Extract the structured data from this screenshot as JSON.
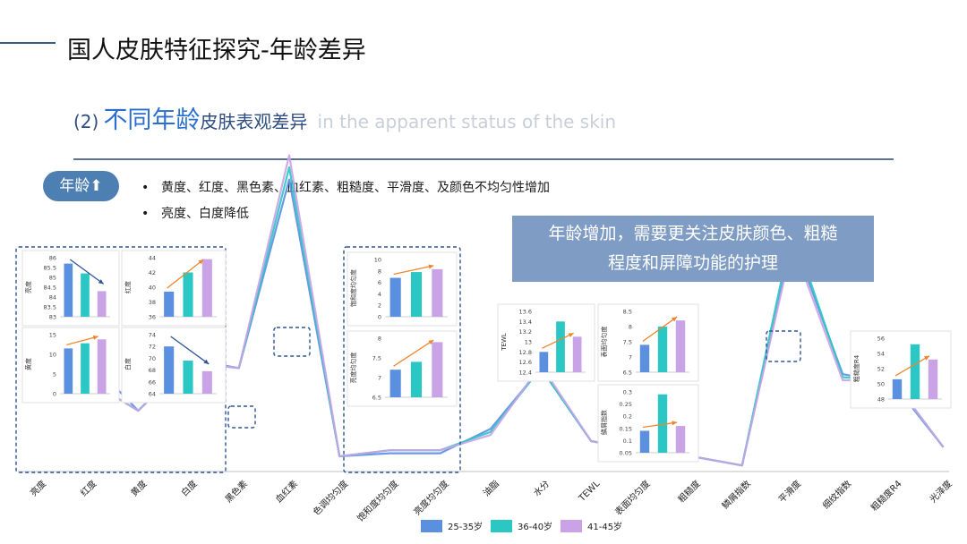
{
  "header": {
    "title": "国人皮肤特征探究-年龄差异"
  },
  "subtitle": {
    "num": "(2)",
    "main": "不同年龄",
    "rest": "皮肤表观差异",
    "en": "in the apparent status of the skin"
  },
  "badge": {
    "label": "年龄⬆"
  },
  "bullets": [
    "黄度、红度、黑色素、血红素、粗糙度、平滑度、及颜色不均匀性增加",
    "亮度、白度降低"
  ],
  "callout": {
    "line1": "年龄增加，需要更关注皮肤颜色、粗糙",
    "line2": "程度和屏障功能的护理"
  },
  "colors": {
    "series1": "#5b8fe0",
    "series2": "#2ac7c4",
    "series3": "#c9a3e6",
    "dashed_box": "#2f5596",
    "arrow_orange": "#f0852d",
    "arrow_blue": "#2f5596"
  },
  "chart_data": [
    {
      "type": "line",
      "categories": [
        "亮度",
        "红度",
        "黄度",
        "白度",
        "黑色素",
        "血红素",
        "色调均匀度",
        "饱和度均匀度",
        "亮度均匀度",
        "油脂",
        "水分",
        "TEWL",
        "表面均匀度",
        "粗糙度",
        "鳞屑指数",
        "平滑度",
        "细纹指数",
        "粗糙度R4",
        "光泽度"
      ],
      "series": [
        {
          "name": "25-35岁",
          "values": [
            0.43,
            0.37,
            0.2,
            0.37,
            0.34,
            0.96,
            0.05,
            0.06,
            0.06,
            0.14,
            0.34,
            0.1,
            0.07,
            0.05,
            0.02,
            0.77,
            0.32,
            0.29,
            0.08
          ]
        },
        {
          "name": "36-40岁",
          "values": [
            0.43,
            0.3,
            0.2,
            0.36,
            0.34,
            1.0,
            0.05,
            0.07,
            0.07,
            0.13,
            0.34,
            0.1,
            0.07,
            0.05,
            0.02,
            0.8,
            0.31,
            0.3,
            0.08
          ]
        },
        {
          "name": "41-45岁",
          "values": [
            0.43,
            0.3,
            0.2,
            0.36,
            0.34,
            1.04,
            0.05,
            0.07,
            0.07,
            0.12,
            0.35,
            0.1,
            0.07,
            0.05,
            0.02,
            0.75,
            0.3,
            0.3,
            0.08
          ]
        }
      ],
      "legend": "bottom",
      "grid": false
    },
    {
      "type": "bar",
      "ylabel": "亮度",
      "categories": [
        "25-35岁",
        "36-40岁",
        "41-45岁"
      ],
      "values": [
        85.7,
        85.2,
        84.3
      ],
      "ylim": [
        83,
        86
      ],
      "ticks": [
        "83",
        "83.5",
        "84",
        "84.5",
        "85",
        "85.5",
        "86"
      ],
      "trend": "down"
    },
    {
      "type": "bar",
      "ylabel": "红度",
      "categories": [
        "25-35岁",
        "36-40岁",
        "41-45岁"
      ],
      "values": [
        39.4,
        42.0,
        43.8
      ],
      "ylim": [
        36,
        44
      ],
      "ticks": [
        "36",
        "38",
        "40",
        "42",
        "44"
      ],
      "trend": "up"
    },
    {
      "type": "bar",
      "ylabel": "黄度",
      "categories": [
        "25-35岁",
        "36-40岁",
        "41-45岁"
      ],
      "values": [
        11.5,
        12.8,
        13.8
      ],
      "ylim": [
        0,
        15
      ],
      "ticks": [
        "0",
        "5",
        "10",
        "15"
      ],
      "trend": "up"
    },
    {
      "type": "bar",
      "ylabel": "白度",
      "categories": [
        "25-35岁",
        "36-40岁",
        "41-45岁"
      ],
      "values": [
        72.0,
        69.6,
        67.8
      ],
      "ylim": [
        64,
        74
      ],
      "ticks": [
        "64",
        "66",
        "68",
        "70",
        "72",
        "74"
      ],
      "trend": "down"
    },
    {
      "type": "bar",
      "ylabel": "饱和度均匀度",
      "categories": [
        "25-35岁",
        "36-40岁",
        "41-45岁"
      ],
      "values": [
        6.8,
        7.8,
        8.3
      ],
      "ylim": [
        0,
        10
      ],
      "ticks": [
        "0",
        "2",
        "4",
        "6",
        "8",
        "10"
      ],
      "trend": "up"
    },
    {
      "type": "bar",
      "ylabel": "亮度均匀度",
      "categories": [
        "25-35岁",
        "36-40岁",
        "41-45岁"
      ],
      "values": [
        7.2,
        7.4,
        7.9
      ],
      "ylim": [
        6.5,
        8
      ],
      "ticks": [
        "6.5",
        "7",
        "7.5",
        "8"
      ],
      "trend": "up"
    },
    {
      "type": "bar",
      "ylabel": "TEWL",
      "categories": [
        "25-35岁",
        "36-40岁",
        "41-45岁"
      ],
      "values": [
        12.8,
        13.4,
        13.1
      ],
      "ylim": [
        12.4,
        13.6
      ],
      "ticks": [
        "12.4",
        "12.6",
        "12.8",
        "13",
        "13.2",
        "13.4",
        "13.6"
      ],
      "trend": "up"
    },
    {
      "type": "bar",
      "ylabel": "表面均匀度",
      "categories": [
        "25-35岁",
        "36-40岁",
        "41-45岁"
      ],
      "values": [
        7.4,
        8.0,
        8.2
      ],
      "ylim": [
        6.5,
        8.5
      ],
      "ticks": [
        "6.5",
        "7",
        "7.5",
        "8",
        "8.5"
      ],
      "trend": "up"
    },
    {
      "type": "bar",
      "ylabel": "鳞屑指数",
      "categories": [
        "25-35岁",
        "36-40岁",
        "41-45岁"
      ],
      "values": [
        0.14,
        0.29,
        0.16
      ],
      "ylim": [
        0.05,
        0.3
      ],
      "ticks": [
        "0.05",
        "0.1",
        "0.15",
        "0.2",
        "0.25",
        "0.3"
      ],
      "trend": "up"
    },
    {
      "type": "bar",
      "ylabel": "粗糙度R4",
      "categories": [
        "25-35岁",
        "36-40岁",
        "41-45岁"
      ],
      "values": [
        50.6,
        55.2,
        53.2
      ],
      "ylim": [
        48,
        56
      ],
      "ticks": [
        "48",
        "50",
        "52",
        "54",
        "56"
      ],
      "trend": "up"
    }
  ]
}
